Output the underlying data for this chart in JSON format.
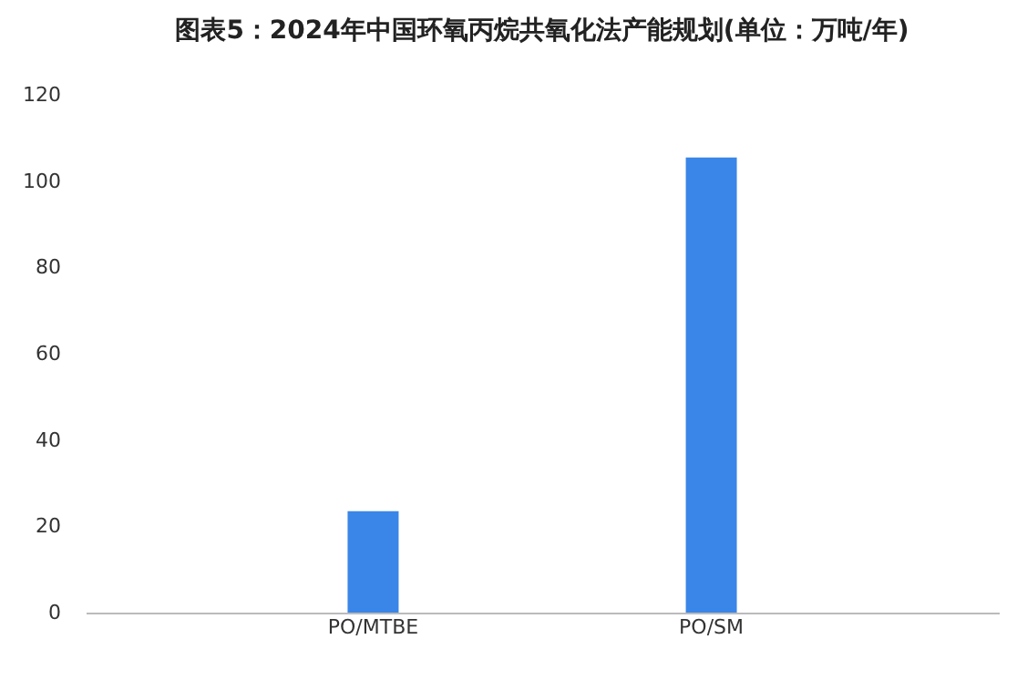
{
  "chart_data": {
    "type": "bar",
    "title": "图表5：2024年中国环氧丙烷共氧化法产能规划(单位：万吨/年)",
    "categories": [
      "PO/MTBE",
      "PO/SM"
    ],
    "values": [
      23.5,
      105.5
    ],
    "color": "#3a86e8",
    "ylim": [
      0,
      120
    ],
    "yticks": [
      0,
      20,
      40,
      60,
      80,
      100,
      120
    ],
    "grid": false
  }
}
